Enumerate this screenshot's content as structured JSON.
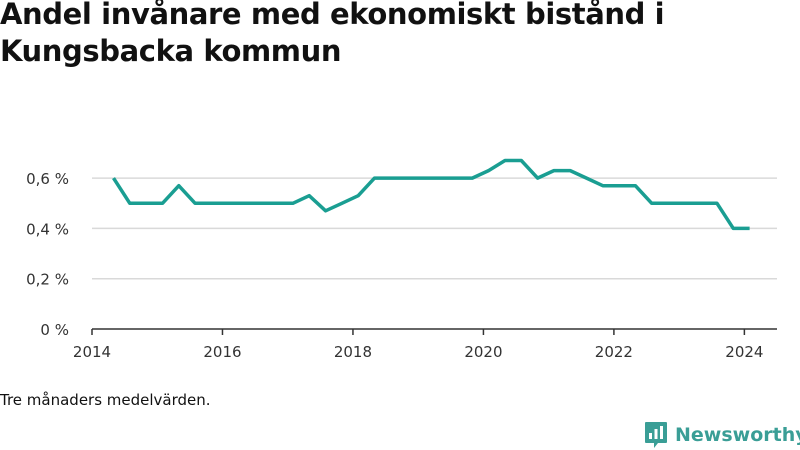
{
  "title": "Andel invånare med ekonomiskt bistånd i Kungsbacka kommun",
  "note": "Tre månaders medelvärden.",
  "brand": {
    "name": "Newsworthy",
    "icon": "newsworthy-logo-icon"
  },
  "colors": {
    "line": "#1a9e92",
    "grid": "#d9d9d9",
    "axis": "#333333",
    "brand": "#3a9e96"
  },
  "chart_data": {
    "type": "line",
    "grid": true,
    "xlim": [
      2014,
      2024.5
    ],
    "ylim": [
      0,
      0.7
    ],
    "xticks": [
      {
        "value": 2014,
        "label": "2014"
      },
      {
        "value": 2016,
        "label": "2016"
      },
      {
        "value": 2018,
        "label": "2018"
      },
      {
        "value": 2020,
        "label": "2020"
      },
      {
        "value": 2022,
        "label": "2022"
      },
      {
        "value": 2024,
        "label": "2024"
      }
    ],
    "yticks": [
      {
        "value": 0,
        "label": "0 %"
      },
      {
        "value": 0.2,
        "label": "0,2 %"
      },
      {
        "value": 0.4,
        "label": "0,4 %"
      },
      {
        "value": 0.6,
        "label": "0,6 %"
      }
    ],
    "series": [
      {
        "x": [
          2014.33,
          2014.58,
          2014.83,
          2015.08,
          2015.33,
          2015.58,
          2015.83,
          2016.08,
          2016.33,
          2016.58,
          2016.83,
          2017.08,
          2017.33,
          2017.58,
          2017.83,
          2018.08,
          2018.33,
          2018.58,
          2018.83,
          2019.08,
          2019.33,
          2019.58,
          2019.83,
          2020.08,
          2020.33,
          2020.58,
          2020.83,
          2021.08,
          2021.33,
          2021.58,
          2021.83,
          2022.08,
          2022.33,
          2022.58,
          2022.83,
          2023.08,
          2023.33,
          2023.58,
          2023.83,
          2024.08
        ],
        "values": [
          0.6,
          0.5,
          0.5,
          0.5,
          0.57,
          0.5,
          0.5,
          0.5,
          0.5,
          0.5,
          0.5,
          0.5,
          0.53,
          0.47,
          0.5,
          0.53,
          0.6,
          0.6,
          0.6,
          0.6,
          0.6,
          0.6,
          0.6,
          0.63,
          0.67,
          0.67,
          0.6,
          0.63,
          0.63,
          0.6,
          0.57,
          0.57,
          0.57,
          0.5,
          0.5,
          0.5,
          0.5,
          0.5,
          0.4,
          0.4
        ]
      }
    ]
  }
}
